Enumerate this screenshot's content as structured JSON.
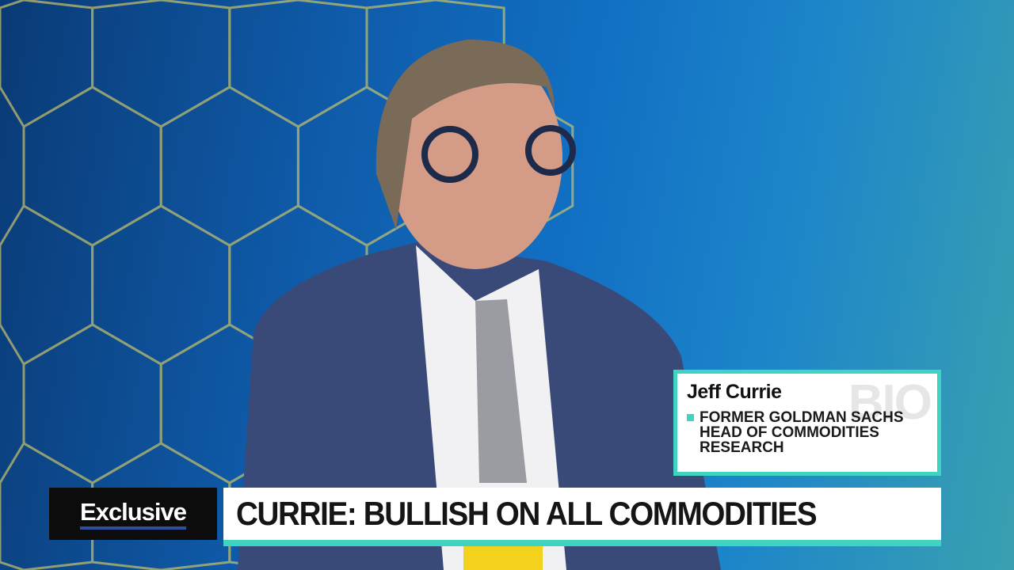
{
  "lower_third": {
    "tag": "Exclusive",
    "headline": "CURRIE: BULLISH ON ALL COMMODITIES"
  },
  "bio": {
    "watermark": "BIO",
    "name": "Jeff Currie",
    "role": "FORMER GOLDMAN SACHS HEAD OF COMMODITIES RESEARCH"
  },
  "colors": {
    "accent": "#3fd3c2",
    "tag_underline": "#2d4fa0",
    "background": "#1170c4"
  }
}
